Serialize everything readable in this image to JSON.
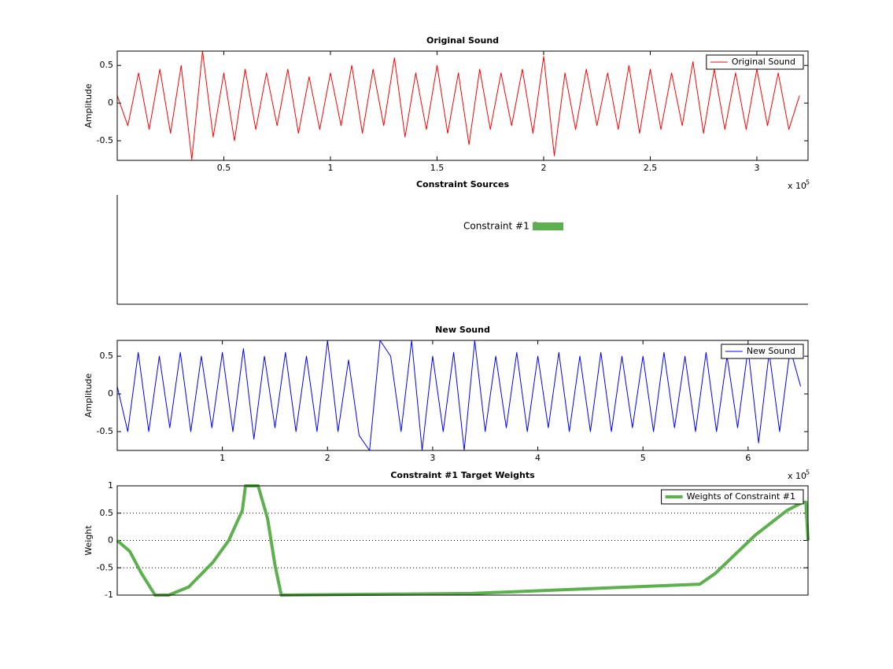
{
  "chart_data": [
    {
      "type": "line",
      "title": "Original Sound",
      "y_label": "Amplitude",
      "x": [
        0,
        5000,
        10000,
        15000,
        20000,
        25000,
        30000,
        35000,
        40000,
        45000,
        50000,
        55000,
        60000,
        65000,
        70000,
        75000,
        80000,
        85000,
        90000,
        95000,
        100000,
        105000,
        110000,
        115000,
        120000,
        125000,
        130000,
        135000,
        140000,
        145000,
        150000,
        155000,
        160000,
        165000,
        170000,
        175000,
        180000,
        185000,
        190000,
        195000,
        200000,
        205000,
        210000,
        215000,
        220000,
        225000,
        230000,
        235000,
        240000,
        245000,
        250000,
        255000,
        260000,
        265000,
        270000,
        275000,
        280000,
        285000,
        290000,
        295000,
        300000,
        305000,
        310000,
        315000,
        320000
      ],
      "series": [
        {
          "name": "Original Sound",
          "color": "#ff0000",
          "values": [
            0.1,
            -0.3,
            0.4,
            -0.35,
            0.45,
            -0.4,
            0.5,
            -0.75,
            0.69,
            -0.45,
            0.4,
            -0.5,
            0.45,
            -0.35,
            0.4,
            -0.3,
            0.45,
            -0.4,
            0.35,
            -0.35,
            0.4,
            -0.3,
            0.5,
            -0.4,
            0.45,
            -0.3,
            0.6,
            -0.45,
            0.4,
            -0.35,
            0.5,
            -0.4,
            0.4,
            -0.55,
            0.45,
            -0.35,
            0.4,
            -0.3,
            0.45,
            -0.4,
            0.62,
            -0.7,
            0.4,
            -0.35,
            0.45,
            -0.3,
            0.4,
            -0.35,
            0.5,
            -0.4,
            0.45,
            -0.35,
            0.4,
            -0.3,
            0.55,
            -0.4,
            0.45,
            -0.35,
            0.4,
            -0.35,
            0.45,
            -0.3,
            0.4,
            -0.35,
            0.1
          ]
        }
      ],
      "xlim": [
        0,
        324000
      ],
      "ylim": [
        -0.76,
        0.69
      ],
      "xticks": [
        {
          "value": 50000,
          "label": "0.5"
        },
        {
          "value": 100000,
          "label": "1"
        },
        {
          "value": 150000,
          "label": "1.5"
        },
        {
          "value": 200000,
          "label": "2"
        },
        {
          "value": 250000,
          "label": "2.5"
        },
        {
          "value": 300000,
          "label": "3"
        }
      ],
      "yticks": [
        -0.5,
        0,
        0.5
      ],
      "x_multiplier": "x 10",
      "x_exponent": "5",
      "grid": false,
      "legend": "upper-right"
    },
    {
      "type": "annotation",
      "title": "Constraint Sources",
      "annotation": "Constraint #1 So",
      "color": "#5cb04d"
    },
    {
      "type": "line",
      "title": "New Sound",
      "y_label": "Amplitude",
      "x": [
        0,
        10000,
        20000,
        30000,
        40000,
        50000,
        60000,
        70000,
        80000,
        90000,
        100000,
        110000,
        120000,
        130000,
        140000,
        150000,
        160000,
        170000,
        180000,
        190000,
        200000,
        210000,
        220000,
        230000,
        240000,
        250000,
        260000,
        270000,
        280000,
        290000,
        300000,
        310000,
        320000,
        330000,
        340000,
        350000,
        360000,
        370000,
        380000,
        390000,
        400000,
        410000,
        420000,
        430000,
        440000,
        450000,
        460000,
        470000,
        480000,
        490000,
        500000,
        510000,
        520000,
        530000,
        540000,
        550000,
        560000,
        570000,
        580000,
        590000,
        600000,
        610000,
        620000,
        630000,
        640000,
        650000
      ],
      "series": [
        {
          "name": "New Sound",
          "color": "#0000ff",
          "values": [
            0.1,
            -0.5,
            0.55,
            -0.5,
            0.5,
            -0.45,
            0.55,
            -0.5,
            0.5,
            -0.45,
            0.55,
            -0.5,
            0.6,
            -0.6,
            0.5,
            -0.45,
            0.55,
            -0.5,
            0.5,
            -0.5,
            0.71,
            -0.5,
            0.45,
            -0.55,
            -0.75,
            0.71,
            0.5,
            -0.5,
            0.71,
            -0.75,
            0.5,
            -0.5,
            0.55,
            -0.75,
            0.71,
            -0.5,
            0.5,
            -0.45,
            0.55,
            -0.5,
            0.5,
            -0.45,
            0.55,
            -0.5,
            0.5,
            -0.5,
            0.55,
            -0.5,
            0.5,
            -0.45,
            0.5,
            -0.5,
            0.55,
            -0.45,
            0.5,
            -0.5,
            0.55,
            -0.5,
            0.5,
            -0.45,
            0.6,
            -0.65,
            0.55,
            -0.5,
            0.6,
            0.1
          ]
        }
      ],
      "xlim": [
        0,
        657000
      ],
      "ylim": [
        -0.75,
        0.71
      ],
      "xticks": [
        {
          "value": 100000,
          "label": "1"
        },
        {
          "value": 200000,
          "label": "2"
        },
        {
          "value": 300000,
          "label": "3"
        },
        {
          "value": 400000,
          "label": "4"
        },
        {
          "value": 500000,
          "label": "5"
        },
        {
          "value": 600000,
          "label": "6"
        }
      ],
      "yticks": [
        -0.5,
        0,
        0.5
      ],
      "x_multiplier": "x 10",
      "x_exponent": "5",
      "grid": false,
      "legend": "upper-right"
    },
    {
      "type": "line",
      "title": "Constraint #1 Target Weights",
      "y_label": "Weight",
      "x": [
        0,
        12000,
        23000,
        36000,
        49000,
        68000,
        91000,
        106000,
        119000,
        122000,
        134000,
        143000,
        150000,
        156000,
        337000,
        554000,
        569000,
        607000,
        637000,
        652000,
        655000,
        657000
      ],
      "series": [
        {
          "name": "Weights of Constraint #1",
          "color": "#5cb04d",
          "values": [
            0,
            -0.2,
            -0.6,
            -1,
            -1,
            -0.85,
            -0.4,
            0,
            0.55,
            1,
            1,
            0.4,
            -0.45,
            -1,
            -0.97,
            -0.8,
            -0.6,
            0.1,
            0.55,
            0.7,
            0.7,
            0
          ]
        }
      ],
      "xlim": [
        0,
        657000
      ],
      "ylim": [
        -1,
        1
      ],
      "yticks": [
        -1,
        -0.5,
        0,
        0.5,
        1
      ],
      "grid": true,
      "legend": "upper-right",
      "line_width": 4
    }
  ]
}
